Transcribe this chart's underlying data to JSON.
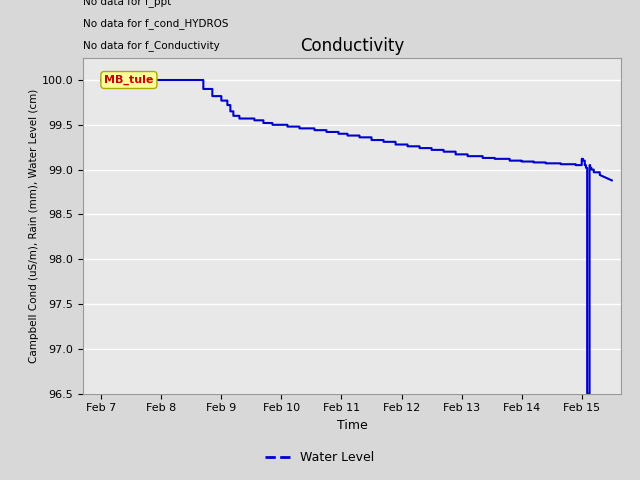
{
  "title": "Conductivity",
  "xlabel": "Time",
  "ylabel": "Campbell Cond (uS/m), Rain (mm), Water Level (cm)",
  "ylim": [
    96.5,
    100.25
  ],
  "yticks": [
    96.5,
    97.0,
    97.5,
    98.0,
    98.5,
    99.0,
    99.5,
    100.0
  ],
  "line_color": "#0000cc",
  "line_width": 1.5,
  "annotations": [
    "No data for f_Conductivity",
    "No data for f_cond_HYDROS",
    "No data for f_ppt"
  ],
  "legend_label": "Water Level",
  "mb_tule_label": "MB_tule",
  "mb_tule_color": "#cc0000",
  "mb_tule_bg": "#ffff99",
  "x_tick_labels": [
    "Feb 7",
    "Feb 8",
    "Feb 9",
    "Feb 10",
    "Feb 11",
    "Feb 12",
    "Feb 13",
    "Feb 14",
    "Feb 15"
  ],
  "x_tick_positions": [
    0,
    1,
    2,
    3,
    4,
    5,
    6,
    7,
    8
  ],
  "water_level_data": [
    [
      0.0,
      100.0
    ],
    [
      1.7,
      100.0
    ],
    [
      1.7,
      99.9
    ],
    [
      1.85,
      99.9
    ],
    [
      1.85,
      99.82
    ],
    [
      2.0,
      99.82
    ],
    [
      2.0,
      99.77
    ],
    [
      2.1,
      99.77
    ],
    [
      2.1,
      99.72
    ],
    [
      2.15,
      99.72
    ],
    [
      2.15,
      99.65
    ],
    [
      2.2,
      99.65
    ],
    [
      2.2,
      99.6
    ],
    [
      2.3,
      99.6
    ],
    [
      2.3,
      99.57
    ],
    [
      2.55,
      99.57
    ],
    [
      2.55,
      99.55
    ],
    [
      2.7,
      99.55
    ],
    [
      2.7,
      99.52
    ],
    [
      2.85,
      99.52
    ],
    [
      2.85,
      99.5
    ],
    [
      3.1,
      99.5
    ],
    [
      3.1,
      99.48
    ],
    [
      3.3,
      99.48
    ],
    [
      3.3,
      99.46
    ],
    [
      3.55,
      99.46
    ],
    [
      3.55,
      99.44
    ],
    [
      3.75,
      99.44
    ],
    [
      3.75,
      99.42
    ],
    [
      3.95,
      99.42
    ],
    [
      3.95,
      99.4
    ],
    [
      4.1,
      99.4
    ],
    [
      4.1,
      99.38
    ],
    [
      4.3,
      99.38
    ],
    [
      4.3,
      99.36
    ],
    [
      4.5,
      99.36
    ],
    [
      4.5,
      99.33
    ],
    [
      4.7,
      99.33
    ],
    [
      4.7,
      99.31
    ],
    [
      4.9,
      99.31
    ],
    [
      4.9,
      99.28
    ],
    [
      5.1,
      99.28
    ],
    [
      5.1,
      99.26
    ],
    [
      5.3,
      99.26
    ],
    [
      5.3,
      99.24
    ],
    [
      5.5,
      99.24
    ],
    [
      5.5,
      99.22
    ],
    [
      5.7,
      99.22
    ],
    [
      5.7,
      99.2
    ],
    [
      5.9,
      99.2
    ],
    [
      5.9,
      99.17
    ],
    [
      6.1,
      99.17
    ],
    [
      6.1,
      99.15
    ],
    [
      6.35,
      99.15
    ],
    [
      6.35,
      99.13
    ],
    [
      6.55,
      99.13
    ],
    [
      6.55,
      99.12
    ],
    [
      6.8,
      99.12
    ],
    [
      6.8,
      99.1
    ],
    [
      7.0,
      99.1
    ],
    [
      7.0,
      99.09
    ],
    [
      7.2,
      99.09
    ],
    [
      7.2,
      99.08
    ],
    [
      7.4,
      99.08
    ],
    [
      7.4,
      99.07
    ],
    [
      7.65,
      99.07
    ],
    [
      7.65,
      99.06
    ],
    [
      7.9,
      99.06
    ],
    [
      7.9,
      99.05
    ],
    [
      8.0,
      99.05
    ],
    [
      8.0,
      99.12
    ],
    [
      8.02,
      99.12
    ],
    [
      8.02,
      99.1
    ],
    [
      8.05,
      99.1
    ],
    [
      8.05,
      99.05
    ],
    [
      8.07,
      99.05
    ],
    [
      8.07,
      99.02
    ],
    [
      8.09,
      99.02
    ],
    [
      8.09,
      96.5
    ],
    [
      8.13,
      96.5
    ],
    [
      8.13,
      99.05
    ],
    [
      8.14,
      99.05
    ],
    [
      8.14,
      99.02
    ],
    [
      8.16,
      99.02
    ],
    [
      8.16,
      99.0
    ],
    [
      8.2,
      99.0
    ],
    [
      8.2,
      98.97
    ],
    [
      8.3,
      98.97
    ],
    [
      8.3,
      98.94
    ],
    [
      8.5,
      98.88
    ]
  ]
}
